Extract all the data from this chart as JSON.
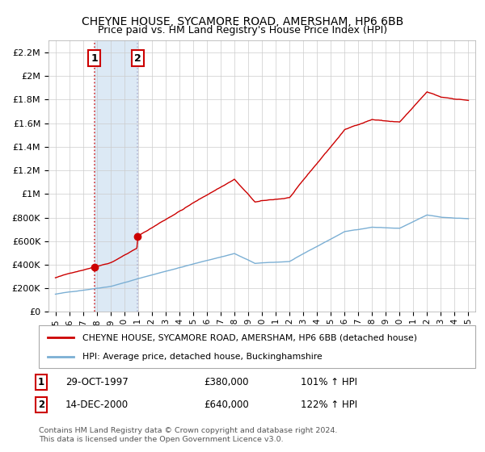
{
  "title": "CHEYNE HOUSE, SYCAMORE ROAD, AMERSHAM, HP6 6BB",
  "subtitle": "Price paid vs. HM Land Registry's House Price Index (HPI)",
  "legend_line1": "CHEYNE HOUSE, SYCAMORE ROAD, AMERSHAM, HP6 6BB (detached house)",
  "legend_line2": "HPI: Average price, detached house, Buckinghamshire",
  "house_color": "#cc0000",
  "hpi_color": "#7bafd4",
  "shade_color": "#dce9f5",
  "purchase1_date": "29-OCT-1997",
  "purchase1_price": 380000,
  "purchase1_label": "101% ↑ HPI",
  "purchase2_date": "14-DEC-2000",
  "purchase2_price": 640000,
  "purchase2_label": "122% ↑ HPI",
  "purchase1_x": 1997.83,
  "purchase2_x": 2000.96,
  "footnote": "Contains HM Land Registry data © Crown copyright and database right 2024.\nThis data is licensed under the Open Government Licence v3.0.",
  "ylim_max": 2300000,
  "yticks": [
    0,
    200000,
    400000,
    600000,
    800000,
    1000000,
    1200000,
    1400000,
    1600000,
    1800000,
    2000000,
    2200000
  ],
  "ylabel_fmt": [
    "£0",
    "£200K",
    "£400K",
    "£600K",
    "£800K",
    "£1M",
    "£1.2M",
    "£1.4M",
    "£1.6M",
    "£1.8M",
    "£2M",
    "£2.2M"
  ],
  "xticks": [
    1995,
    1996,
    1997,
    1998,
    1999,
    2000,
    2001,
    2002,
    2003,
    2004,
    2005,
    2006,
    2007,
    2008,
    2009,
    2010,
    2011,
    2012,
    2013,
    2014,
    2015,
    2016,
    2017,
    2018,
    2019,
    2020,
    2021,
    2022,
    2023,
    2024,
    2025
  ],
  "xlim": [
    1994.5,
    2025.5
  ]
}
